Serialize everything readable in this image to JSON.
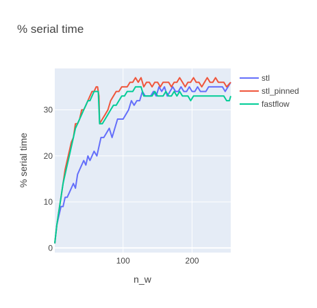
{
  "chart_data": {
    "type": "line",
    "title": "% serial time",
    "xlabel": "n_w",
    "ylabel": "% serial time",
    "xlim": [
      1,
      256
    ],
    "ylim": [
      -1,
      39
    ],
    "xticks": [
      100,
      200
    ],
    "yticks": [
      0,
      10,
      20,
      30
    ],
    "grid": true,
    "legend_position": "top-right",
    "series": [
      {
        "name": "stl",
        "color": "#636efa",
        "x": [
          1,
          4,
          7,
          10,
          13,
          16,
          19,
          22,
          25,
          28,
          31,
          34,
          37,
          40,
          43,
          46,
          49,
          52,
          55,
          58,
          62,
          65,
          68,
          72,
          76,
          80,
          84,
          88,
          92,
          96,
          100,
          104,
          108,
          112,
          116,
          120,
          124,
          128,
          132,
          136,
          140,
          144,
          148,
          152,
          156,
          160,
          164,
          168,
          172,
          176,
          180,
          184,
          188,
          192,
          196,
          200,
          204,
          208,
          212,
          216,
          220,
          224,
          228,
          232,
          236,
          240,
          244,
          248,
          252,
          256
        ],
        "y": [
          1,
          5,
          7,
          9,
          9,
          11,
          11,
          12,
          13,
          14,
          13,
          16,
          17,
          18,
          19,
          18,
          20,
          19,
          20,
          21,
          20,
          22,
          24,
          24,
          25,
          26,
          24,
          26,
          28,
          28,
          28,
          29,
          30,
          32,
          31,
          32,
          32,
          34,
          33,
          33,
          33,
          34,
          33,
          35,
          34,
          35,
          33,
          34,
          35,
          34,
          34,
          35,
          34,
          34,
          35,
          34,
          34,
          35,
          34,
          34,
          34,
          35,
          35,
          35,
          35,
          35,
          35,
          34,
          35,
          36
        ]
      },
      {
        "name": "stl_pinned",
        "color": "#ef553b",
        "x": [
          1,
          4,
          7,
          10,
          13,
          16,
          19,
          22,
          25,
          28,
          31,
          34,
          37,
          40,
          43,
          46,
          49,
          52,
          55,
          58,
          61,
          63,
          65,
          66,
          70,
          74,
          78,
          82,
          86,
          90,
          94,
          98,
          102,
          106,
          110,
          114,
          118,
          122,
          126,
          130,
          134,
          138,
          142,
          146,
          150,
          154,
          158,
          162,
          166,
          170,
          174,
          178,
          182,
          186,
          190,
          194,
          198,
          202,
          206,
          210,
          214,
          218,
          222,
          226,
          230,
          234,
          238,
          242,
          246,
          250,
          256
        ],
        "y": [
          1,
          5,
          8,
          11,
          14,
          17,
          19,
          21,
          23,
          24,
          27,
          27,
          28,
          30,
          30,
          31,
          32,
          33,
          34,
          34,
          35,
          35,
          33,
          27,
          28,
          29,
          30,
          32,
          33,
          34,
          34,
          35,
          35,
          35,
          36,
          36,
          37,
          36,
          37,
          35,
          36,
          36,
          35,
          36,
          36,
          35,
          36,
          36,
          36,
          35,
          36,
          36,
          37,
          36,
          35,
          36,
          36,
          37,
          36,
          36,
          35,
          36,
          37,
          36,
          36,
          37,
          36,
          36,
          36,
          35,
          36
        ]
      },
      {
        "name": "fastflow",
        "color": "#00cc96",
        "x": [
          1,
          4,
          7,
          10,
          13,
          16,
          19,
          22,
          25,
          28,
          31,
          34,
          37,
          40,
          43,
          46,
          49,
          52,
          55,
          58,
          61,
          64,
          66,
          70,
          74,
          78,
          82,
          86,
          90,
          94,
          98,
          102,
          106,
          110,
          114,
          118,
          122,
          126,
          130,
          134,
          138,
          142,
          146,
          150,
          154,
          158,
          162,
          166,
          170,
          174,
          178,
          182,
          186,
          190,
          194,
          198,
          202,
          206,
          210,
          214,
          218,
          222,
          226,
          230,
          234,
          238,
          242,
          246,
          250,
          254,
          256
        ],
        "y": [
          1,
          5,
          8,
          11,
          14,
          16,
          18,
          20,
          22,
          24,
          26,
          27,
          28,
          29,
          30,
          31,
          32,
          32,
          33,
          34,
          34,
          34,
          27,
          27,
          28,
          29,
          30,
          31,
          31,
          32,
          33,
          33,
          34,
          34,
          34,
          35,
          35,
          35,
          33,
          33,
          33,
          33,
          34,
          33,
          33,
          33,
          34,
          33,
          33,
          34,
          33,
          34,
          33,
          33,
          33,
          32,
          33,
          33,
          33,
          33,
          33,
          33,
          33,
          33,
          33,
          33,
          33,
          33,
          32,
          32,
          33
        ]
      }
    ]
  }
}
